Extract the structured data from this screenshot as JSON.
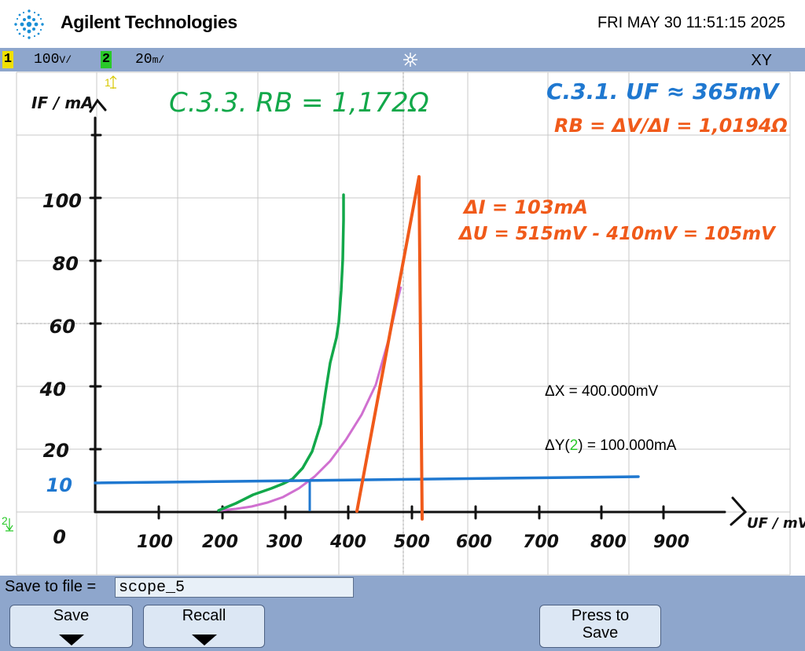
{
  "header": {
    "brand": "Agilent Technologies",
    "datetime": "FRI MAY 30 11:51:15 2025"
  },
  "status": {
    "ch1_number": "1",
    "ch1_scale": "100",
    "ch2_number": "2",
    "ch2_scale": "20",
    "mode": "XY",
    "ch1_color": "#f0e000",
    "ch2_color": "#29c929"
  },
  "plot": {
    "ch1_marker": "1",
    "ch2_marker": "2",
    "axis_y_label": "IF / mA",
    "axis_x_label": "UF / mV",
    "x_ticks": [
      "100",
      "200",
      "300",
      "400",
      "500",
      "600",
      "700",
      "800",
      "900"
    ],
    "y_ticks": [
      "100",
      "80",
      "60",
      "40",
      "20"
    ],
    "y_mark_10": "10",
    "origin": "0",
    "annotation_green": "C.3.3. RB = 1,172Ω",
    "annotation_blue": "C.3.1. UF ≈ 365mV",
    "annotation_orange_1": "RB = ΔV/ΔI = 1,0194Ω",
    "annotation_orange_2": "ΔI = 103mA",
    "annotation_orange_3": "ΔU = 515mV - 410mV = 105mV",
    "delta_x": "ΔX = 400.000mV",
    "delta_y_prefix": "ΔY(",
    "delta_y_channel": "2",
    "delta_y_suffix": ") = 100.000mA",
    "colors": {
      "green": "#12a84a",
      "blue": "#1f78d0",
      "orange": "#f05a1a",
      "pink": "#d070d0"
    }
  },
  "bottom": {
    "save_to_file_label": "Save to file =",
    "filename": "scope_5",
    "softkey_save": "Save",
    "softkey_recall": "Recall",
    "softkey_press_to_save_1": "Press to",
    "softkey_press_to_save_2": "Save"
  }
}
